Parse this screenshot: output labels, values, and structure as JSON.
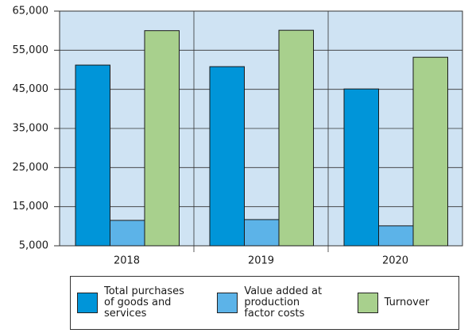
{
  "chart_data": {
    "type": "bar",
    "categories": [
      "2018",
      "2019",
      "2020"
    ],
    "series": [
      {
        "name": "Total purchases of goods and services",
        "color": "#0095d9",
        "values": [
          51200,
          50800,
          45100
        ]
      },
      {
        "name": "Value added at production factor costs",
        "color": "#5cb3e8",
        "values": [
          11500,
          11700,
          10100
        ]
      },
      {
        "name": "Turnover",
        "color": "#a8d08d",
        "values": [
          60000,
          60100,
          53200
        ]
      }
    ],
    "ylim": [
      5000,
      65000
    ],
    "yticks": [
      {
        "value": 5000,
        "label": "5,000"
      },
      {
        "value": 15000,
        "label": "15,000"
      },
      {
        "value": 25000,
        "label": "25,000"
      },
      {
        "value": 35000,
        "label": "35,000"
      },
      {
        "value": 45000,
        "label": "45,000"
      },
      {
        "value": 55000,
        "label": "55,000"
      },
      {
        "value": 65000,
        "label": "65,000"
      }
    ],
    "grid": true
  }
}
